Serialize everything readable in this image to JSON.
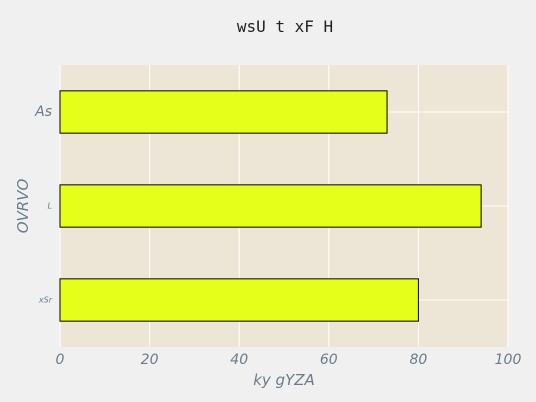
{
  "chart_data": {
    "type": "bar",
    "orientation": "horizontal",
    "title": "wsU t xF H",
    "xlabel": "ky gYZA",
    "ylabel": "OVRVO",
    "categories": [
      "As",
      "L",
      "xSr"
    ],
    "values": [
      73,
      94,
      80
    ],
    "xlim": [
      0,
      100
    ],
    "xticks": [
      0,
      20,
      40,
      60,
      80,
      100
    ],
    "grid": true,
    "legend": "none",
    "colors": {
      "bar": "#e5ff1a",
      "bar_edge": "#000000",
      "plot_background": "#ede6d6",
      "figure_background": "#f0f0f0",
      "grid": "#ffffff",
      "text": "#6b7b8c"
    }
  }
}
